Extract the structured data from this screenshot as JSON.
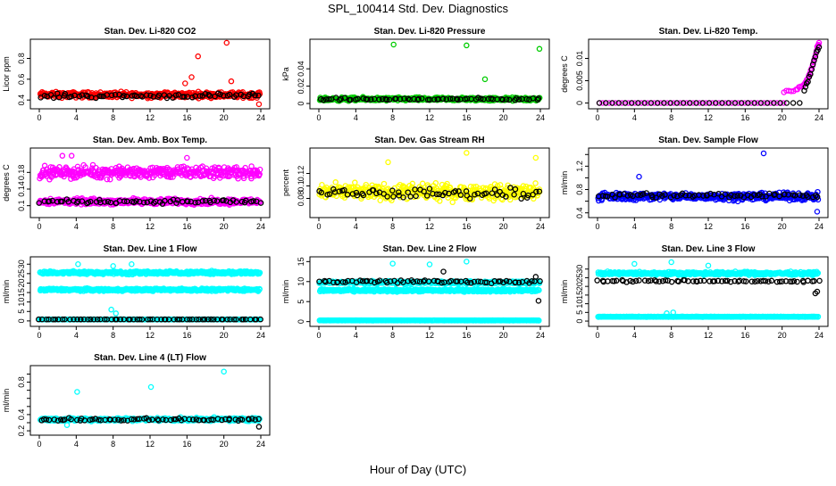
{
  "figure": {
    "title": "SPL_100414  Std. Dev. Diagnostics",
    "xlabel": "Hour of Day (UTC)"
  },
  "chart_data": [
    {
      "type": "scatter",
      "title": "Stan. Dev. Li-820 CO2",
      "ylabel": "Licor ppm",
      "xlim": [
        0,
        24
      ],
      "ylim": [
        0.35,
        0.95
      ],
      "xticks": [
        0,
        4,
        8,
        12,
        16,
        20,
        24
      ],
      "yticks": [
        0.4,
        0.6,
        0.8
      ],
      "series": [
        {
          "name": "colored",
          "color": "#ff0000",
          "base": 0.45,
          "spread": 0.04,
          "spikes": [
            [
              16.5,
              0.62
            ],
            [
              17.2,
              0.82
            ],
            [
              20.3,
              0.95
            ],
            [
              20.8,
              0.58
            ],
            [
              23.8,
              0.36
            ],
            [
              15.8,
              0.56
            ]
          ]
        },
        {
          "name": "black",
          "color": "#000000",
          "base": 0.44,
          "spread": 0.03,
          "spikes": []
        }
      ]
    },
    {
      "type": "scatter",
      "title": "Stan. Dev. Li-820 Pressure",
      "ylabel": "kPa",
      "xlim": [
        0,
        24
      ],
      "ylim": [
        -0.002,
        0.07
      ],
      "xticks": [
        0,
        4,
        8,
        12,
        16,
        20,
        24
      ],
      "yticks": [
        0,
        0.02,
        0.04
      ],
      "series": [
        {
          "name": "colored",
          "color": "#00cc00",
          "base": 0.005,
          "spread": 0.003,
          "spikes": [
            [
              8.1,
              0.068
            ],
            [
              16.0,
              0.067
            ],
            [
              23.9,
              0.063
            ],
            [
              18.0,
              0.028
            ]
          ]
        },
        {
          "name": "black",
          "color": "#000000",
          "base": 0.005,
          "spread": 0.002,
          "spikes": []
        }
      ]
    },
    {
      "type": "scatter",
      "title": "Stan. Dev. Li-820 Temp.",
      "ylabel": "degrees C",
      "xlim": [
        0,
        24
      ],
      "ylim": [
        -0.0005,
        0.0135
      ],
      "xticks": [
        0,
        4,
        8,
        12,
        16,
        20,
        24
      ],
      "yticks": [
        0,
        0.005,
        0.01
      ],
      "series": [
        {
          "name": "colored",
          "color": "#ff00ff",
          "base": 0.0,
          "spread": 0.0,
          "curve": [
            [
              20.2,
              0.0025
            ],
            [
              21.5,
              0.003
            ],
            [
              22.3,
              0.004
            ],
            [
              22.9,
              0.006
            ],
            [
              23.4,
              0.009
            ],
            [
              23.8,
              0.0125
            ],
            [
              24.0,
              0.0135
            ]
          ]
        },
        {
          "name": "black",
          "color": "#000000",
          "base": 0.0,
          "spread": 0.0,
          "curve": [
            [
              22.4,
              0.003
            ],
            [
              22.8,
              0.005
            ],
            [
              23.2,
              0.0075
            ],
            [
              23.6,
              0.0105
            ],
            [
              24.0,
              0.0125
            ]
          ]
        }
      ]
    },
    {
      "type": "scatter",
      "title": "Stan. Dev. Amb. Box Temp.",
      "ylabel": "degrees C",
      "xlim": [
        0,
        24
      ],
      "ylim": [
        0.08,
        0.23
      ],
      "xticks": [
        0,
        4,
        8,
        12,
        16,
        20,
        24
      ],
      "yticks": [
        0.1,
        0.14,
        0.18
      ],
      "series": [
        {
          "name": "colored-high",
          "color": "#ff00ff",
          "base": 0.18,
          "spread": 0.02,
          "spikes": [
            [
              2.5,
              0.22
            ],
            [
              3.5,
              0.22
            ],
            [
              16.0,
              0.215
            ]
          ]
        },
        {
          "name": "colored-low",
          "color": "#ff00ff",
          "base": 0.11,
          "spread": 0.01,
          "spikes": []
        },
        {
          "name": "black",
          "color": "#000000",
          "base": 0.11,
          "spread": 0.007,
          "spikes": []
        }
      ]
    },
    {
      "type": "scatter",
      "title": "Stan. Dev. Gas Stream RH",
      "ylabel": "percent",
      "xlim": [
        0,
        24
      ],
      "ylim": [
        0.055,
        0.155
      ],
      "xticks": [
        0,
        4,
        8,
        12,
        16,
        20,
        24
      ],
      "yticks": [
        0.08,
        0.1,
        0.12
      ],
      "series": [
        {
          "name": "colored",
          "color": "#ffff00",
          "base": 0.09,
          "spread": 0.018,
          "spikes": [
            [
              16.0,
              0.153
            ],
            [
              23.5,
              0.145
            ],
            [
              7.5,
              0.138
            ]
          ]
        },
        {
          "name": "black",
          "color": "#000000",
          "base": 0.088,
          "spread": 0.012,
          "spikes": []
        }
      ]
    },
    {
      "type": "scatter",
      "title": "Stan. Dev. Sample Flow",
      "ylabel": "ml/min",
      "xlim": [
        0,
        24
      ],
      "ylim": [
        0.38,
        1.45
      ],
      "xticks": [
        0,
        4,
        8,
        12,
        16,
        20,
        24
      ],
      "yticks": [
        0.4,
        0.6,
        0.8,
        1.0,
        1.2,
        1.4
      ],
      "ytick_labels": [
        "0.4",
        "",
        "0.8",
        "",
        "1.2",
        ""
      ],
      "series": [
        {
          "name": "colored",
          "color": "#0000ff",
          "base": 0.68,
          "spread": 0.09,
          "spikes": [
            [
              18.0,
              1.42
            ],
            [
              23.8,
              0.42
            ],
            [
              4.5,
              1.02
            ]
          ]
        },
        {
          "name": "black",
          "color": "#000000",
          "base": 0.7,
          "spread": 0.06,
          "spikes": []
        }
      ]
    },
    {
      "type": "scatter",
      "title": "Stan. Dev. Line 1 Flow",
      "ylabel": "ml/min",
      "xlim": [
        0,
        24
      ],
      "ylim": [
        -1,
        32
      ],
      "xticks": [
        0,
        4,
        8,
        12,
        16,
        20,
        24
      ],
      "yticks": [
        0,
        5,
        10,
        15,
        20,
        25,
        30
      ],
      "series": [
        {
          "name": "colored-high",
          "color": "#00ffff",
          "base": 25.5,
          "spread": 1.2,
          "spikes": [
            [
              4.2,
              30.0
            ],
            [
              8.0,
              29.0
            ],
            [
              10.0,
              30.0
            ]
          ]
        },
        {
          "name": "colored-mid",
          "color": "#00ffff",
          "base": 16.5,
          "spread": 1.0,
          "spikes": [
            [
              7.8,
              6.0
            ],
            [
              8.3,
              4.0
            ]
          ]
        },
        {
          "name": "colored-low",
          "color": "#00ffff",
          "base": 0.8,
          "spread": 0.1,
          "spikes": []
        },
        {
          "name": "black",
          "color": "#000000",
          "base": 0.8,
          "spread": 0.05,
          "spikes": []
        }
      ]
    },
    {
      "type": "scatter",
      "title": "Stan. Dev. Line 2 Flow",
      "ylabel": "ml/min",
      "xlim": [
        0,
        24
      ],
      "ylim": [
        -0.3,
        15.3
      ],
      "xticks": [
        0,
        4,
        8,
        12,
        16,
        20,
        24
      ],
      "yticks": [
        0,
        5,
        10,
        15
      ],
      "series": [
        {
          "name": "colored-high",
          "color": "#00ffff",
          "base": 9.8,
          "spread": 0.5,
          "spikes": [
            [
              8.0,
              14.5
            ],
            [
              12.0,
              14.3
            ],
            [
              16.0,
              15.0
            ]
          ]
        },
        {
          "name": "colored-mid",
          "color": "#00ffff",
          "base": 7.8,
          "spread": 0.5,
          "spikes": []
        },
        {
          "name": "colored-low",
          "color": "#00ffff",
          "base": 0.3,
          "spread": 0.05,
          "spikes": []
        },
        {
          "name": "black",
          "color": "#000000",
          "base": 10.0,
          "spread": 0.6,
          "spikes": [
            [
              23.8,
              5.2
            ],
            [
              23.5,
              11.2
            ],
            [
              13.5,
              12.5
            ]
          ]
        }
      ]
    },
    {
      "type": "scatter",
      "title": "Stan. Dev. Line 3 Flow",
      "ylabel": "ml/min",
      "xlim": [
        0,
        24
      ],
      "ylim": [
        -1,
        35
      ],
      "xticks": [
        0,
        4,
        8,
        12,
        16,
        20,
        24
      ],
      "yticks": [
        0,
        5,
        10,
        15,
        20,
        25,
        30
      ],
      "series": [
        {
          "name": "colored-high",
          "color": "#00ffff",
          "base": 27.5,
          "spread": 1.3,
          "spikes": [
            [
              4.0,
              33.0
            ],
            [
              8.0,
              34.0
            ],
            [
              12.0,
              32.0
            ]
          ]
        },
        {
          "name": "colored-low",
          "color": "#00ffff",
          "base": 2.5,
          "spread": 0.2,
          "spikes": [
            [
              8.2,
              5.0
            ],
            [
              7.5,
              4.5
            ]
          ]
        },
        {
          "name": "black",
          "color": "#000000",
          "base": 23.0,
          "spread": 0.8,
          "spikes": [
            [
              23.6,
              16.0
            ],
            [
              23.8,
              17.0
            ]
          ]
        }
      ]
    },
    {
      "type": "scatter",
      "title": "Stan. Dev. Line 4 (LT) Flow",
      "ylabel": "ml/min",
      "xlim": [
        0,
        24
      ],
      "ylim": [
        0.19,
        0.96
      ],
      "xticks": [
        0,
        4,
        8,
        12,
        16,
        20,
        24
      ],
      "yticks": [
        0.2,
        0.3,
        0.4,
        0.5,
        0.6,
        0.7,
        0.8,
        0.9
      ],
      "ytick_labels": [
        "0.2",
        "",
        "0.4",
        "",
        "",
        "",
        "0.8",
        ""
      ],
      "series": [
        {
          "name": "colored",
          "color": "#00ffff",
          "base": 0.34,
          "spread": 0.03,
          "spikes": [
            [
              4.1,
              0.68
            ],
            [
              12.1,
              0.74
            ],
            [
              20.0,
              0.93
            ],
            [
              3.0,
              0.27
            ]
          ]
        },
        {
          "name": "black",
          "color": "#000000",
          "base": 0.34,
          "spread": 0.025,
          "spikes": [
            [
              23.8,
              0.25
            ]
          ]
        }
      ]
    }
  ]
}
